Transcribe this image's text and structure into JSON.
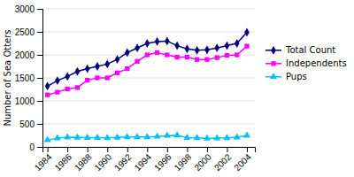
{
  "chart_data": {
    "type": "line",
    "x": [
      1984,
      1985,
      1986,
      1987,
      1988,
      1989,
      1990,
      1991,
      1992,
      1993,
      1994,
      1995,
      1996,
      1997,
      1998,
      1999,
      2000,
      2001,
      2002,
      2003,
      2004
    ],
    "series": [
      {
        "name": "Total Count",
        "color": "#000080",
        "marker": "diamond",
        "values": [
          1320,
          1440,
          1530,
          1640,
          1700,
          1750,
          1800,
          1900,
          2050,
          2150,
          2250,
          2290,
          2300,
          2200,
          2130,
          2100,
          2110,
          2150,
          2200,
          2250,
          2490
        ]
      },
      {
        "name": "Independents",
        "color": "#FF00FF",
        "marker": "square",
        "values": [
          1130,
          1190,
          1260,
          1290,
          1450,
          1500,
          1500,
          1610,
          1700,
          1860,
          2000,
          2050,
          2000,
          1950,
          1950,
          1900,
          1900,
          1940,
          1990,
          2000,
          2190
        ]
      },
      {
        "name": "Pups",
        "color": "#00BFFF",
        "marker": "triangle",
        "values": [
          150,
          190,
          210,
          205,
          200,
          200,
          195,
          205,
          215,
          215,
          215,
          225,
          245,
          250,
          200,
          195,
          185,
          190,
          195,
          210,
          245
        ]
      }
    ],
    "ylabel": "Number of Sea Otters",
    "xlim": [
      1983.5,
      2004.8
    ],
    "xticks": [
      1984,
      1986,
      1988,
      1990,
      1992,
      1994,
      1996,
      1998,
      2000,
      2002,
      2004
    ],
    "ylim": [
      0,
      3000
    ],
    "yticks": [
      0,
      500,
      1000,
      1500,
      2000,
      2500,
      3000
    ],
    "grid": true,
    "legend": "right"
  }
}
